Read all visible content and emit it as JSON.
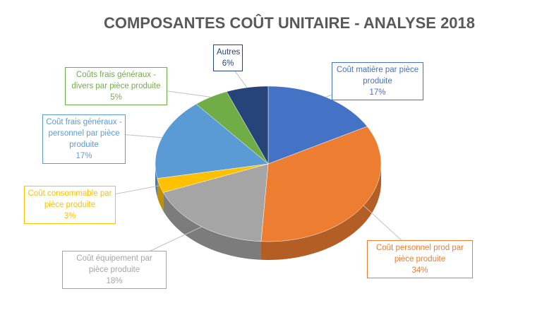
{
  "chart_data": {
    "type": "pie3d",
    "title": "COMPOSANTES COÛT UNITAIRE - ANALYSE 2018",
    "categories": [
      "Coût matière par pièce produite",
      "Coût personnel prod par pièce produite",
      "Coût équipement par pièce produite",
      "Coût consommable par pièce produite",
      "Coût frais généraux - personnel par pièce produite",
      "Coûts frais généraux - divers par pièce produite",
      "Autres"
    ],
    "values": [
      17,
      34,
      18,
      3,
      17,
      5,
      6
    ],
    "value_labels": [
      "17%",
      "34%",
      "18%",
      "3%",
      "17%",
      "5%",
      "6%"
    ],
    "colors": [
      "#4472c4",
      "#ed7d31",
      "#a5a5a5",
      "#ffc000",
      "#5b9bd5",
      "#70ad47",
      "#264478"
    ]
  }
}
